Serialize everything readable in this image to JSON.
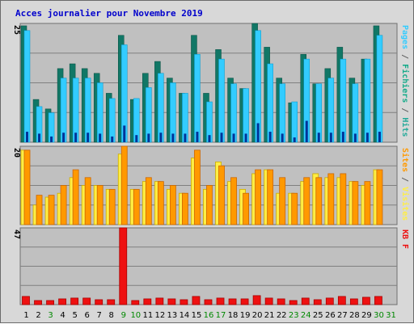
{
  "title": "Acces journalier pour Novembre 2019",
  "colors": {
    "pages": "#33ccff",
    "pages_dark": "#0099cc",
    "fichiers": "#117766",
    "hits": "#003399",
    "sites": "#ff9900",
    "sites_dark": "#cc6600",
    "visites": "#ffee44",
    "visites_dark": "#ccaa00",
    "kb": "#ee1111",
    "kb_dark": "#aa0000",
    "weekday_label": "#000000",
    "weekend_label": "#008800",
    "panel_bg": "#c0c0c0"
  },
  "chart_data": [
    {
      "type": "bar",
      "panel": "hits_fichiers_pages",
      "ymax_label": "25",
      "ylim": [
        0,
        25
      ],
      "legend": [
        {
          "text": "Pages",
          "color_key": "pages"
        },
        {
          "text": " / ",
          "color_key": "separator"
        },
        {
          "text": "Fichiers",
          "color_key": "fichiers_legend"
        },
        {
          "text": " / ",
          "color_key": "separator"
        },
        {
          "text": "Hits",
          "color_key": "hits_legend"
        }
      ],
      "categories": [
        "1",
        "2",
        "3",
        "4",
        "5",
        "6",
        "7",
        "8",
        "9",
        "10",
        "11",
        "12",
        "13",
        "14",
        "15",
        "16",
        "17",
        "18",
        "19",
        "20",
        "21",
        "22",
        "23",
        "24",
        "25",
        "26",
        "27",
        "28",
        "29",
        "30",
        "31"
      ],
      "series": [
        {
          "name": "Hits",
          "values": [
            24.5,
            9,
            7,
            15.5,
            16.5,
            15.5,
            14.5,
            10.3,
            22.5,
            9,
            14.5,
            17,
            13.5,
            10.3,
            22.5,
            10.3,
            19.5,
            13.5,
            11.3,
            25,
            20,
            13.5,
            8.3,
            18.5,
            12.3,
            15.5,
            20,
            13.5,
            17.5,
            24.5,
            0
          ]
        },
        {
          "name": "Fichiers",
          "values": [
            23.5,
            7.5,
            6.2,
            13.5,
            13.5,
            13.5,
            12.5,
            9.2,
            20.5,
            9.2,
            11.5,
            14.5,
            12.5,
            10.3,
            18.5,
            8.5,
            17.5,
            12.3,
            11.3,
            23.5,
            16.5,
            12.3,
            8.5,
            17.5,
            12.3,
            13.5,
            17.5,
            12.3,
            17.5,
            22.5,
            0
          ]
        },
        {
          "name": "Pages",
          "values": [
            2.2,
            1.8,
            1.2,
            2,
            2,
            2,
            1.8,
            1.2,
            3.5,
            1.5,
            1.8,
            2,
            1.8,
            1.8,
            2.2,
            1.5,
            2,
            1.8,
            1.8,
            4,
            2.2,
            1.8,
            1,
            4.5,
            2,
            2,
            2.2,
            1.8,
            2,
            2.2,
            0
          ]
        }
      ]
    },
    {
      "type": "bar",
      "panel": "sites_visites",
      "ymax_label": "20",
      "ylim": [
        0,
        20
      ],
      "legend": [
        {
          "text": "Sites",
          "color_key": "sites"
        },
        {
          "text": " / ",
          "color_key": "separator"
        },
        {
          "text": "Visites",
          "color_key": "visites"
        }
      ],
      "categories": [
        "1",
        "2",
        "3",
        "4",
        "5",
        "6",
        "7",
        "8",
        "9",
        "10",
        "11",
        "12",
        "13",
        "14",
        "15",
        "16",
        "17",
        "18",
        "19",
        "20",
        "21",
        "22",
        "23",
        "24",
        "25",
        "26",
        "27",
        "28",
        "29",
        "30",
        "31"
      ],
      "series": [
        {
          "name": "Visites",
          "values": [
            19,
            5,
            7,
            8,
            12,
            10,
            10,
            9,
            18,
            9,
            11,
            11,
            9,
            8,
            17,
            9,
            16,
            11,
            9,
            13,
            14,
            8,
            8,
            11,
            13,
            12,
            12,
            11,
            10,
            14,
            0
          ]
        },
        {
          "name": "Sites",
          "values": [
            19,
            7.5,
            7.5,
            10,
            14,
            12,
            10,
            9,
            20,
            9,
            12,
            11,
            10,
            8,
            19,
            10,
            15,
            12,
            8,
            14,
            14,
            12,
            8,
            12,
            12,
            13,
            13,
            11,
            11,
            14,
            0
          ]
        }
      ]
    },
    {
      "type": "bar",
      "panel": "kb",
      "ymax_label": "47",
      "ylim": [
        0,
        47
      ],
      "legend": [
        {
          "text": "KB F",
          "color_key": "kb"
        }
      ],
      "categories": [
        "1",
        "2",
        "3",
        "4",
        "5",
        "6",
        "7",
        "8",
        "9",
        "10",
        "11",
        "12",
        "13",
        "14",
        "15",
        "16",
        "17",
        "18",
        "19",
        "20",
        "21",
        "22",
        "23",
        "24",
        "25",
        "26",
        "27",
        "28",
        "29",
        "30",
        "31"
      ],
      "series": [
        {
          "name": "KB F",
          "values": [
            5,
            2.5,
            2.5,
            3.5,
            4,
            4,
            3,
            3,
            47,
            2.5,
            3.5,
            4,
            3.5,
            3,
            5,
            3,
            4,
            3.5,
            3.5,
            5.5,
            4,
            3.5,
            2.5,
            4,
            3,
            4,
            5,
            3.5,
            4.5,
            5,
            0
          ]
        }
      ]
    }
  ],
  "weekend_days": [
    3,
    9,
    10,
    16,
    17,
    23,
    24,
    30,
    31
  ]
}
